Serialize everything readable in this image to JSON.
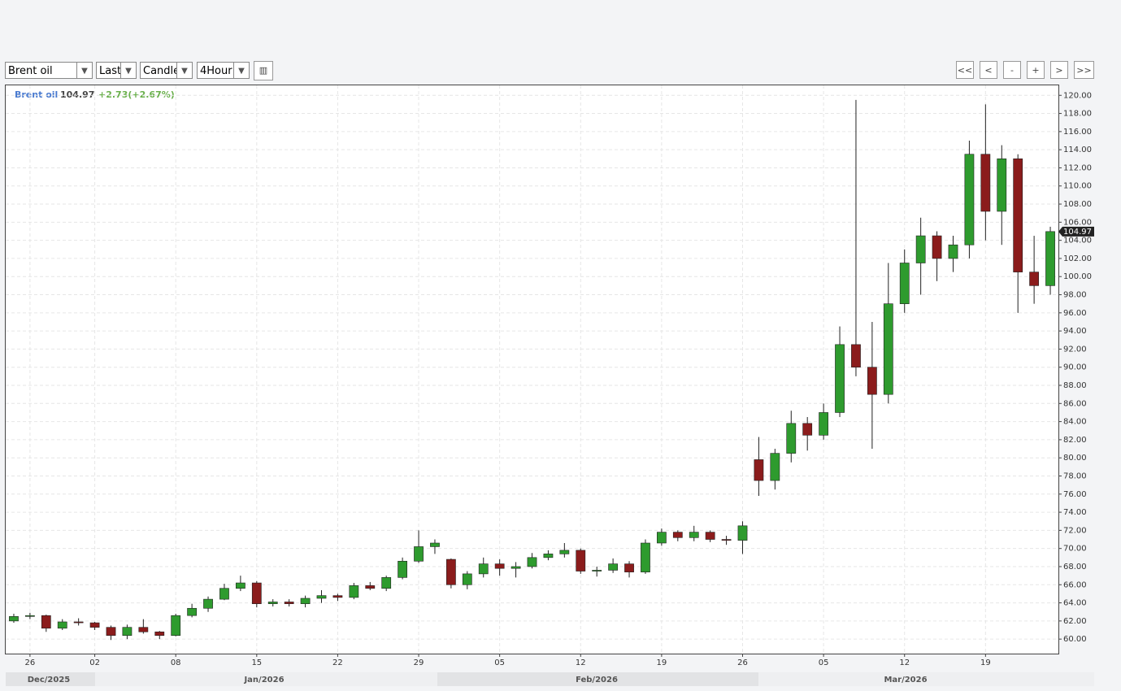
{
  "toolbar": {
    "symbol": "Brent oil",
    "price": "Last",
    "style": "Candle",
    "interval": "4Hour",
    "nav": [
      "<<",
      "<",
      "-",
      "+",
      ">",
      ">>"
    ]
  },
  "chart_data": {
    "type": "candlestick",
    "change_label": "+2.73(+2.67%)",
    "up_color": "#2e9b2e",
    "down_color": "#8b1c1c",
    "grid": true,
    "series": [
      {
        "name": "Brent oil",
        "values": [
          [
            62.0,
            62.8,
            61.8,
            62.5
          ],
          [
            62.5,
            62.9,
            62.2,
            62.6
          ],
          [
            62.6,
            62.7,
            60.8,
            61.2
          ],
          [
            61.2,
            62.2,
            61.0,
            61.9
          ],
          [
            61.9,
            62.3,
            61.5,
            61.8
          ],
          [
            61.8,
            61.9,
            61.0,
            61.3
          ],
          [
            61.3,
            61.5,
            59.9,
            60.4
          ],
          [
            60.4,
            61.6,
            60.0,
            61.3
          ],
          [
            61.3,
            62.2,
            60.6,
            60.8
          ],
          [
            60.8,
            60.9,
            60.0,
            60.4
          ],
          [
            60.4,
            62.8,
            60.3,
            62.6
          ],
          [
            62.6,
            63.9,
            62.4,
            63.4
          ],
          [
            63.4,
            64.7,
            63.0,
            64.4
          ],
          [
            64.4,
            66.1,
            64.3,
            65.6
          ],
          [
            65.6,
            67.0,
            65.3,
            66.2
          ],
          [
            66.2,
            66.4,
            63.5,
            63.9
          ],
          [
            63.9,
            64.4,
            63.6,
            64.1
          ],
          [
            64.1,
            64.4,
            63.6,
            63.9
          ],
          [
            63.9,
            64.8,
            63.5,
            64.5
          ],
          [
            64.5,
            65.4,
            64.0,
            64.8
          ],
          [
            64.8,
            65.0,
            64.2,
            64.6
          ],
          [
            64.6,
            66.2,
            64.4,
            65.9
          ],
          [
            65.9,
            66.3,
            65.4,
            65.6
          ],
          [
            65.6,
            67.0,
            65.3,
            66.8
          ],
          [
            66.8,
            69.0,
            66.6,
            68.6
          ],
          [
            68.6,
            72.0,
            68.4,
            70.2
          ],
          [
            70.2,
            71.0,
            69.4,
            70.6
          ],
          [
            68.8,
            68.9,
            65.6,
            66.0
          ],
          [
            66.0,
            67.5,
            65.5,
            67.2
          ],
          [
            67.2,
            69.0,
            66.8,
            68.3
          ],
          [
            68.3,
            68.8,
            67.0,
            67.8
          ],
          [
            67.8,
            68.5,
            66.8,
            68.0
          ],
          [
            68.0,
            69.5,
            67.8,
            69.0
          ],
          [
            69.0,
            69.8,
            68.7,
            69.4
          ],
          [
            69.4,
            70.6,
            69.0,
            69.8
          ],
          [
            69.8,
            70.0,
            67.2,
            67.5
          ],
          [
            67.5,
            68.0,
            66.9,
            67.6
          ],
          [
            67.6,
            68.9,
            67.3,
            68.3
          ],
          [
            68.3,
            68.6,
            66.8,
            67.4
          ],
          [
            67.4,
            71.0,
            67.2,
            70.6
          ],
          [
            70.6,
            72.2,
            70.3,
            71.8
          ],
          [
            71.8,
            72.0,
            70.8,
            71.2
          ],
          [
            71.2,
            72.5,
            70.8,
            71.8
          ],
          [
            71.8,
            72.0,
            70.7,
            71.0
          ],
          [
            71.0,
            71.4,
            70.4,
            70.9
          ],
          [
            70.9,
            73.0,
            69.4,
            72.5
          ],
          [
            79.8,
            82.3,
            75.8,
            77.5
          ],
          [
            77.5,
            81.0,
            76.5,
            80.5
          ],
          [
            80.5,
            85.2,
            79.5,
            83.8
          ],
          [
            83.8,
            84.5,
            80.8,
            82.5
          ],
          [
            82.5,
            86.0,
            82.0,
            85.0
          ],
          [
            85.0,
            94.5,
            84.5,
            92.5
          ],
          [
            92.5,
            119.5,
            89.0,
            90.0
          ],
          [
            90.0,
            95.0,
            81.0,
            87.0
          ],
          [
            87.0,
            101.5,
            86.0,
            97.0
          ],
          [
            97.0,
            103.0,
            96.0,
            101.5
          ],
          [
            101.5,
            106.5,
            98.0,
            104.5
          ],
          [
            104.5,
            105.0,
            99.5,
            102.0
          ],
          [
            102.0,
            104.5,
            100.5,
            103.5
          ],
          [
            103.5,
            115.0,
            102.0,
            113.5
          ],
          [
            113.5,
            119.0,
            104.0,
            107.2
          ],
          [
            107.2,
            114.5,
            103.5,
            113.0
          ],
          [
            113.0,
            113.5,
            96.0,
            100.5
          ],
          [
            100.5,
            104.5,
            97.0,
            99.0
          ],
          [
            99.0,
            105.5,
            98.0,
            104.97
          ]
        ]
      }
    ],
    "categories": [
      null,
      "26",
      null,
      null,
      null,
      "02",
      null,
      null,
      null,
      null,
      "08",
      null,
      null,
      null,
      null,
      "15",
      null,
      null,
      null,
      null,
      "22",
      null,
      null,
      null,
      null,
      "29",
      null,
      null,
      null,
      null,
      "05",
      null,
      null,
      null,
      null,
      "12",
      null,
      null,
      null,
      null,
      "19",
      null,
      null,
      null,
      null,
      "26",
      null,
      null,
      null,
      null,
      "05",
      null,
      null,
      null,
      null,
      "12",
      null,
      null,
      null,
      null,
      "19",
      null,
      null,
      null,
      null
    ],
    "months": [
      "Dec/2025",
      "Jan/2026",
      "Feb/2026",
      "Mar/2026"
    ],
    "ylim": [
      58.4,
      121.1
    ],
    "yticks": [
      {
        "value": 60,
        "label": "60.00"
      },
      {
        "value": 62,
        "label": "62.00"
      },
      {
        "value": 64,
        "label": "64.00"
      },
      {
        "value": 66,
        "label": "66.00"
      },
      {
        "value": 68,
        "label": "68.00"
      },
      {
        "value": 70,
        "label": "70.00"
      },
      {
        "value": 72,
        "label": "72.00"
      },
      {
        "value": 74,
        "label": "74.00"
      },
      {
        "value": 76,
        "label": "76.00"
      },
      {
        "value": 78,
        "label": "78.00"
      },
      {
        "value": 80,
        "label": "80.00"
      },
      {
        "value": 82,
        "label": "82.00"
      },
      {
        "value": 84,
        "label": "84.00"
      },
      {
        "value": 86,
        "label": "86.00"
      },
      {
        "value": 88,
        "label": "88.00"
      },
      {
        "value": 90,
        "label": "90.00"
      },
      {
        "value": 92,
        "label": "92.00"
      },
      {
        "value": 94,
        "label": "94.00"
      },
      {
        "value": 96,
        "label": "96.00"
      },
      {
        "value": 98,
        "label": "98.00"
      },
      {
        "value": 100,
        "label": "100.00"
      },
      {
        "value": 102,
        "label": "102.00"
      },
      {
        "value": 104,
        "label": "104.00"
      },
      {
        "value": 106,
        "label": "106.00"
      },
      {
        "value": 108,
        "label": "108.00"
      },
      {
        "value": 110,
        "label": "110.00"
      },
      {
        "value": 112,
        "label": "112.00"
      },
      {
        "value": 114,
        "label": "114.00"
      },
      {
        "value": 116,
        "label": "116.00"
      },
      {
        "value": 118,
        "label": "118.00"
      },
      {
        "value": 120,
        "label": "120.00"
      }
    ]
  }
}
